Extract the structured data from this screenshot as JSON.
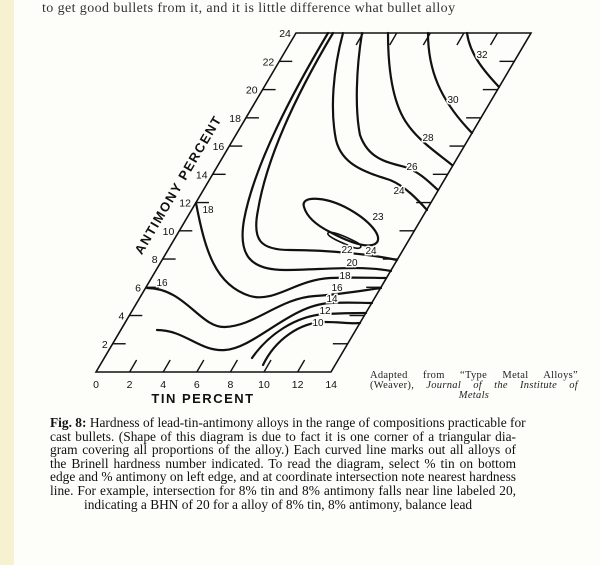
{
  "page": {
    "top_text": "to get good bullets from it, and it is little difference what bullet alloy"
  },
  "figure": {
    "antimony_axis_title": "ANTIMONY PERCENT",
    "tin_axis_title": "TIN PERCENT",
    "antimony_ticks": [
      "2",
      "4",
      "6",
      "8",
      "10",
      "12",
      "14",
      "16",
      "18",
      "20",
      "22",
      "24"
    ],
    "tin_ticks": [
      "0",
      "2",
      "4",
      "6",
      "8",
      "10",
      "12",
      "14"
    ],
    "contour_labels": {
      "c10": "10",
      "c12": "12",
      "c14": "14",
      "c16": "16",
      "c16_left": "16",
      "c18": "18",
      "c18_left": "18",
      "c20": "20",
      "c22": "22",
      "c23": "23",
      "c24_inner": "24",
      "c24": "24",
      "c26": "26",
      "c28": "28",
      "c30": "30",
      "c32": "32"
    },
    "contour_levels": [
      10,
      12,
      14,
      16,
      18,
      20,
      22,
      23,
      24,
      26,
      28,
      30,
      32
    ]
  },
  "source_note": {
    "line1": "Adapted from “Type Metal Alloys”",
    "line2_plain": "(Weaver),",
    "line2_italic": "Journal of the Institute of",
    "line3_italic": "Metals"
  },
  "caption": {
    "label": "Fig. 8:",
    "lines": [
      "Hardness of lead-tin-antimony alloys in the range of compositions practicable for",
      "cast bullets. (Shape of this diagram is due to fact it is one corner of a triangular dia-",
      "gram covering all proportions of the alloy.) Each curved line marks out all alloys of",
      "the Brinell hardness number indicated. To read the diagram, select % tin on bottom",
      "edge and % antimony on left edge, and at coordinate intersection note nearest hardness",
      "line. For example, intersection for 8% tin and 8% antimony falls near line labeled 20,",
      "indicating a BHN of 20 for a alloy of 8% tin, 8% antimony, balance lead"
    ]
  }
}
